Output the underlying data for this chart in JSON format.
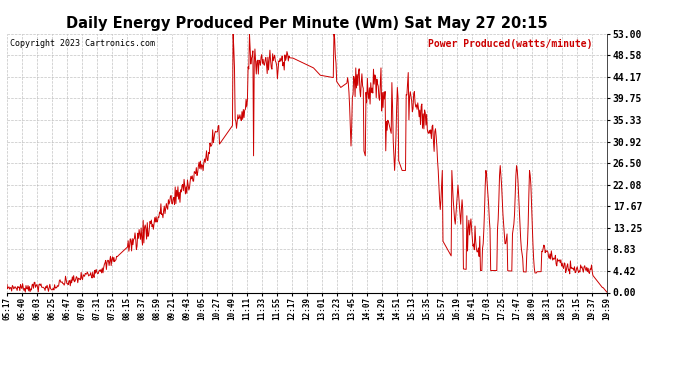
{
  "title": "Daily Energy Produced Per Minute (Wm) Sat May 27 20:15",
  "copyright": "Copyright 2023 Cartronics.com",
  "legend_label": "Power Produced(watts/minute)",
  "y_ticks": [
    0.0,
    4.42,
    8.83,
    13.25,
    17.67,
    22.08,
    26.5,
    30.92,
    35.33,
    39.75,
    44.17,
    48.58,
    53.0
  ],
  "ymin": 0.0,
  "ymax": 53.0,
  "line_color": "#cc0000",
  "background_color": "#ffffff",
  "grid_color": "#aaaaaa",
  "title_color": "#000000",
  "copyright_color": "#000000",
  "legend_color": "#cc0000",
  "x_tick_labels": [
    "05:17",
    "05:40",
    "06:03",
    "06:25",
    "06:47",
    "07:09",
    "07:31",
    "07:53",
    "08:15",
    "08:37",
    "08:59",
    "09:21",
    "09:43",
    "10:05",
    "10:27",
    "10:49",
    "11:11",
    "11:33",
    "11:55",
    "12:17",
    "12:39",
    "13:01",
    "13:23",
    "13:45",
    "14:07",
    "14:29",
    "14:51",
    "15:13",
    "15:35",
    "15:57",
    "16:19",
    "16:41",
    "17:03",
    "17:25",
    "17:47",
    "18:09",
    "18:31",
    "18:53",
    "19:15",
    "19:37",
    "19:59"
  ]
}
